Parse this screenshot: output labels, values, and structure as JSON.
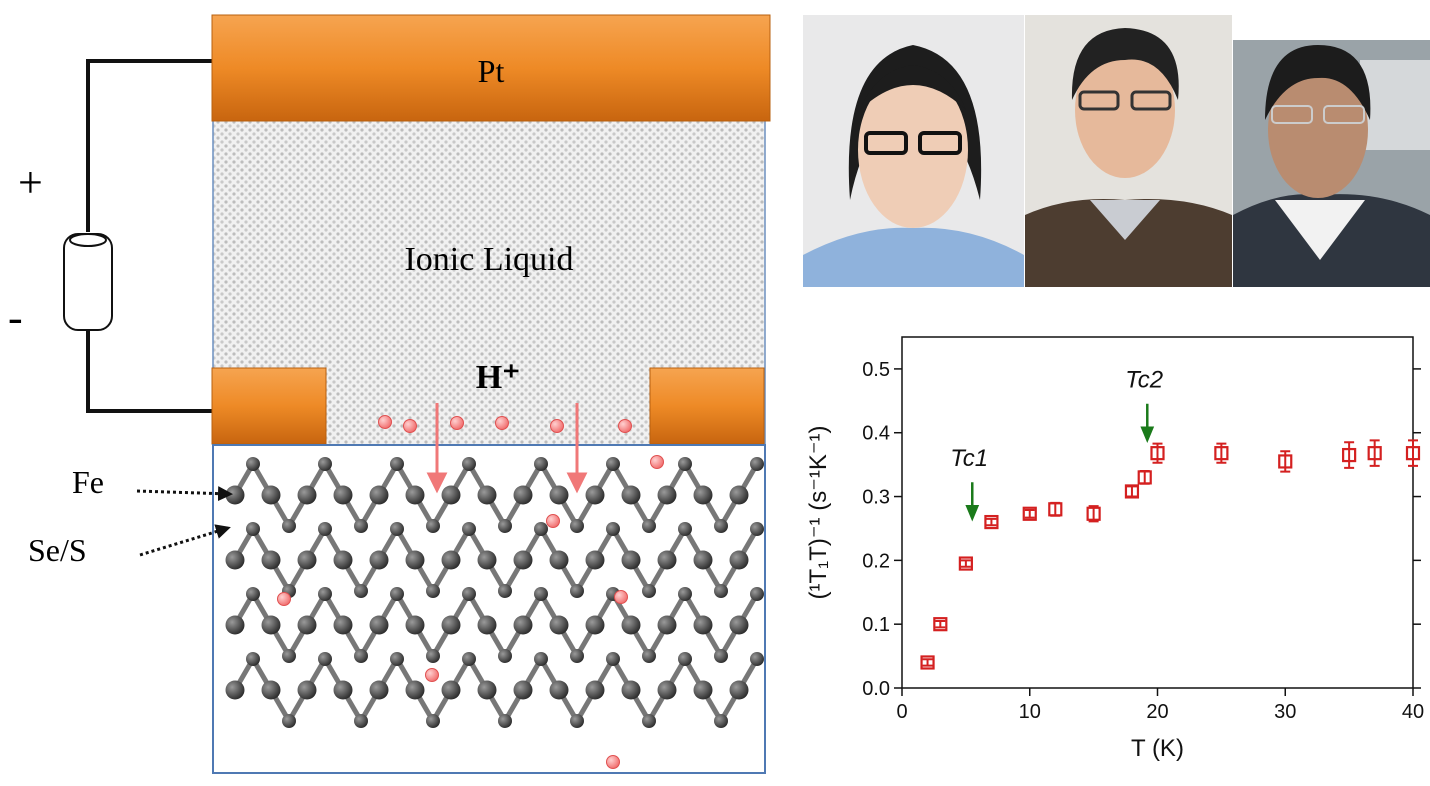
{
  "diagram": {
    "electrode_top": "Pt",
    "electrolyte": "Ionic Liquid",
    "ion": "H⁺",
    "atom_labels": [
      "Fe",
      "Se/S"
    ],
    "battery_plus": "+",
    "battery_minus": "-"
  },
  "chart_data": {
    "type": "scatter",
    "x": [
      2,
      3,
      5,
      7,
      10,
      12,
      15,
      18,
      19,
      20,
      25,
      30,
      35,
      37,
      40
    ],
    "values": [
      0.04,
      0.1,
      0.195,
      0.26,
      0.273,
      0.28,
      0.273,
      0.308,
      0.33,
      0.368,
      0.368,
      0.355,
      0.365,
      0.368,
      0.368
    ],
    "errors": [
      0.005,
      0.005,
      0.005,
      0.005,
      0.006,
      0.01,
      0.012,
      0.008,
      0.01,
      0.015,
      0.015,
      0.016,
      0.02,
      0.02,
      0.02
    ],
    "color": "#d42020",
    "xlabel": "T (K)",
    "ylabel": "(¹T₁T)⁻¹ (s⁻¹K⁻¹)",
    "xlim": [
      0,
      40
    ],
    "ylim": [
      0,
      0.55
    ],
    "xticks": [
      0,
      10,
      20,
      30,
      40
    ],
    "yticks": [
      {
        "value": 0,
        "label": "0.0"
      },
      0.1,
      0.2,
      0.3,
      0.4,
      0.5
    ],
    "annotations": [
      {
        "text": "Tc1",
        "x": 5.5,
        "y": 0.266,
        "color": "#1a7a1a"
      },
      {
        "text": "Tc2",
        "x": 19.2,
        "y": 0.389,
        "color": "#1a7a1a"
      }
    ]
  }
}
